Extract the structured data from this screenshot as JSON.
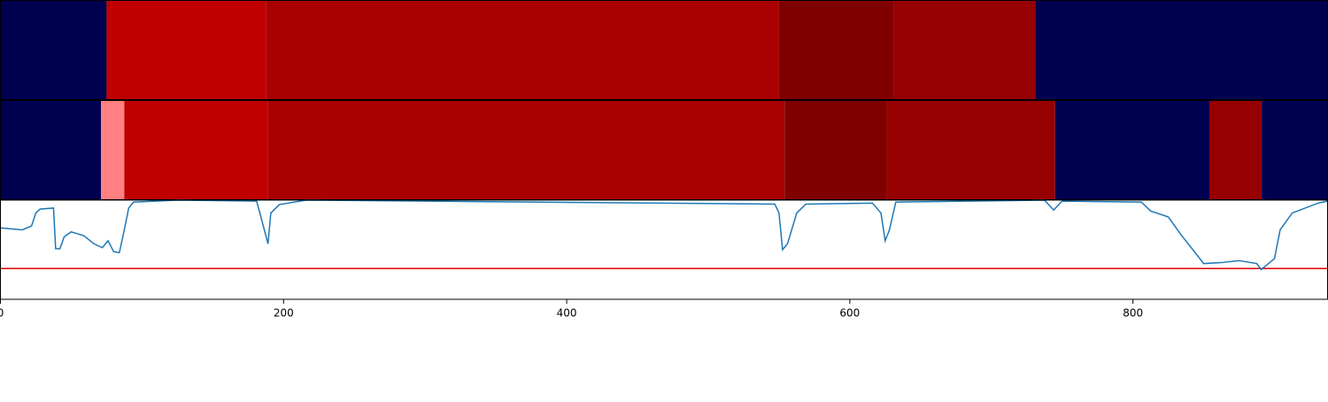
{
  "chart_data": [
    {
      "type": "segments",
      "segments": [
        {
          "start": 0,
          "end": 75,
          "color": "#000050"
        },
        {
          "start": 75,
          "end": 187.5,
          "color": "#c00000"
        },
        {
          "start": 187.5,
          "end": 550,
          "color": "#aa0000"
        },
        {
          "start": 550,
          "end": 631,
          "color": "#800000"
        },
        {
          "start": 631,
          "end": 731,
          "color": "#960000"
        },
        {
          "start": 731,
          "end": 937.5,
          "color": "#000050"
        }
      ]
    },
    {
      "type": "segments",
      "segments": [
        {
          "start": 0,
          "end": 71,
          "color": "#000050"
        },
        {
          "start": 71,
          "end": 87.5,
          "color": "#ff8080"
        },
        {
          "start": 87.5,
          "end": 189,
          "color": "#c00000"
        },
        {
          "start": 189,
          "end": 554,
          "color": "#aa0000"
        },
        {
          "start": 554,
          "end": 626,
          "color": "#800000"
        },
        {
          "start": 626,
          "end": 745,
          "color": "#960000"
        },
        {
          "start": 745,
          "end": 854,
          "color": "#000050"
        },
        {
          "start": 854,
          "end": 891,
          "color": "#960000"
        },
        {
          "start": 891,
          "end": 937.5,
          "color": "#000050"
        }
      ]
    },
    {
      "type": "line",
      "color": "#1f77b4",
      "x": [
        0,
        15.6,
        22,
        25,
        28,
        37.5,
        39,
        42,
        45,
        50,
        59,
        66,
        72,
        76,
        80,
        84,
        87.5,
        90.6,
        94,
        125,
        181,
        184,
        189,
        191,
        197,
        216,
        547,
        550,
        552.5,
        556,
        562.5,
        569,
        616,
        622,
        625,
        628,
        632.5,
        737.5,
        744,
        750,
        806,
        812.5,
        825,
        834,
        844,
        850,
        862.5,
        875,
        887.5,
        890.6,
        900,
        904,
        912.5,
        931,
        937.5
      ],
      "values": [
        0.72,
        0.7,
        0.74,
        0.87,
        0.91,
        0.92,
        0.51,
        0.51,
        0.63,
        0.68,
        0.64,
        0.56,
        0.52,
        0.59,
        0.48,
        0.47,
        0.7,
        0.92,
        0.98,
        1.0,
        0.99,
        0.83,
        0.56,
        0.87,
        0.955,
        1.0,
        0.96,
        0.87,
        0.5,
        0.56,
        0.87,
        0.96,
        0.97,
        0.87,
        0.59,
        0.7,
        0.98,
        1.0,
        0.9,
        0.99,
        0.98,
        0.89,
        0.83,
        0.65,
        0.47,
        0.36,
        0.37,
        0.39,
        0.36,
        0.3,
        0.41,
        0.7,
        0.87,
        0.97,
        0.99
      ],
      "hline": 0.31,
      "hline_color": "#e00000",
      "xlim": [
        0,
        937.5
      ],
      "ylim": [
        0,
        1
      ],
      "xticks": [
        0,
        200,
        400,
        600,
        800
      ]
    }
  ]
}
